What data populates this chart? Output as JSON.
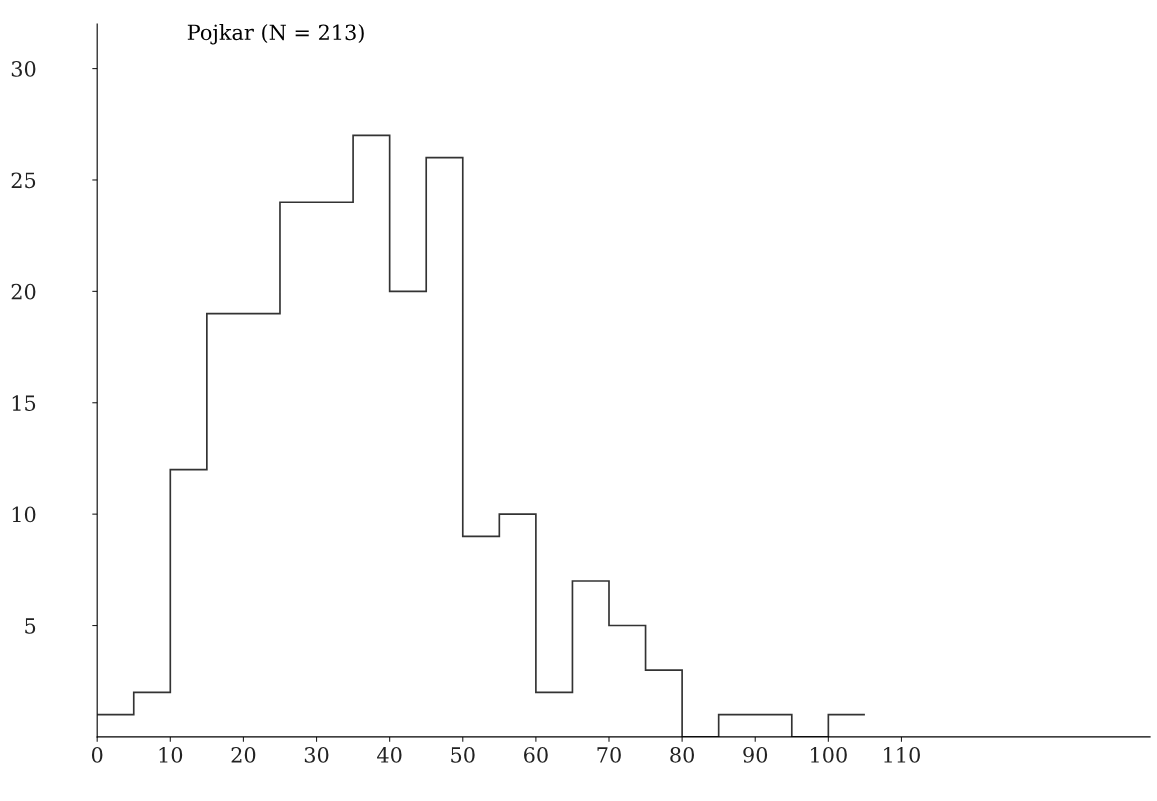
{
  "chart_data": {
    "type": "histogram",
    "title": "Pojkar (N = 213)",
    "bins": [
      0,
      5,
      10,
      15,
      20,
      25,
      30,
      35,
      40,
      45,
      50,
      55,
      60,
      65,
      70,
      75,
      80,
      85,
      90,
      95,
      100,
      105
    ],
    "values": [
      1,
      2,
      12,
      19,
      19,
      24,
      24,
      27,
      20,
      26,
      9,
      10,
      2,
      7,
      5,
      3,
      0,
      1,
      1,
      0,
      1
    ],
    "color": "#333333",
    "xlim": [
      0,
      144
    ],
    "xticks": [
      0,
      10,
      20,
      30,
      40,
      50,
      60,
      70,
      80,
      90,
      100,
      110
    ],
    "ylim": [
      0,
      32
    ],
    "yticks": [
      5,
      10,
      15,
      20,
      25,
      30
    ],
    "grid": false,
    "legend": false
  }
}
